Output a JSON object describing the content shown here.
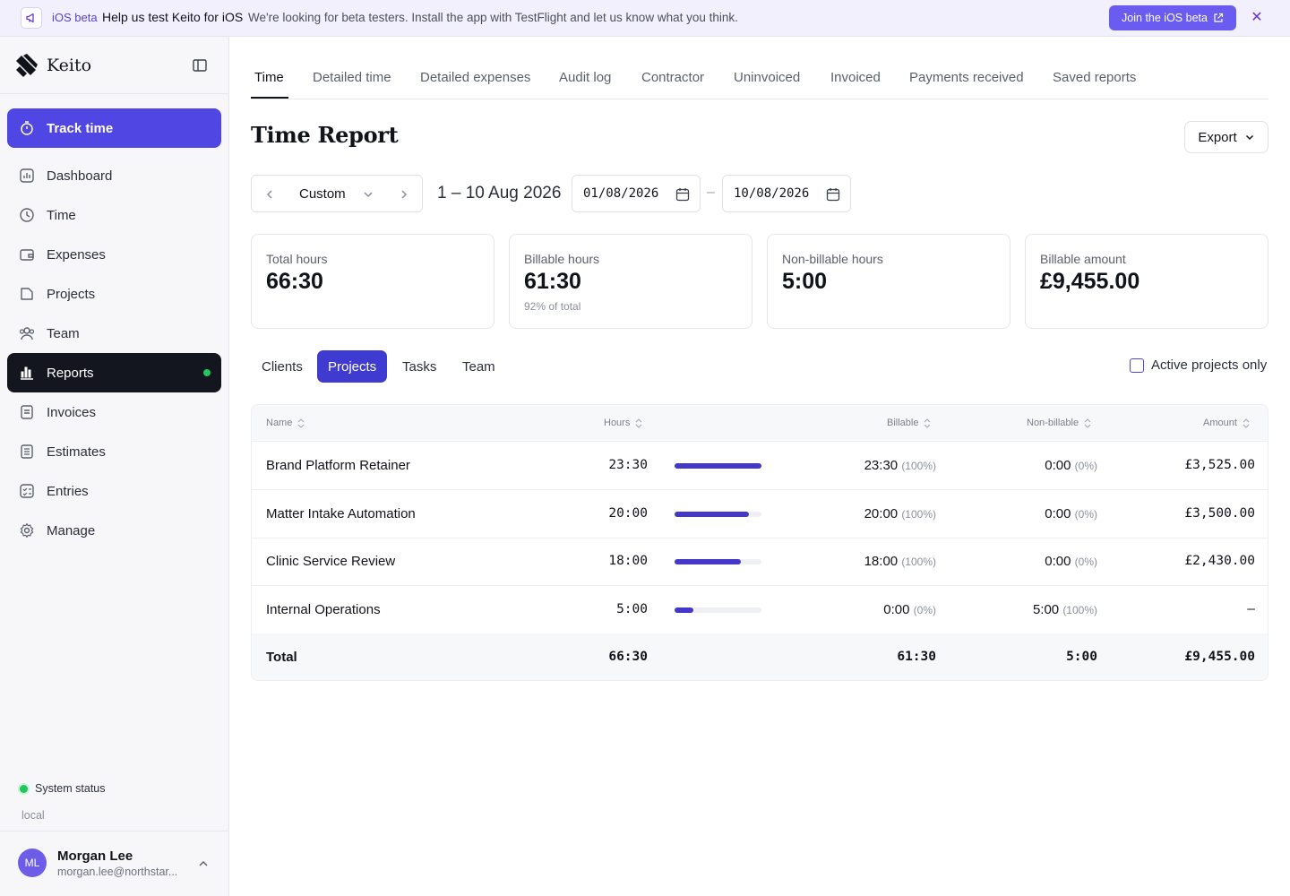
{
  "banner": {
    "tag": "iOS beta",
    "title": "Help us test Keito for iOS",
    "text": "We're looking for beta testers. Install the app with TestFlight and let us know what you think.",
    "button_label": "Join the iOS beta",
    "icon": "megaphone-icon",
    "accent": "#6a5cf0"
  },
  "sidebar": {
    "brand": "Keito",
    "track_label": "Track time",
    "items": [
      {
        "label": "Dashboard",
        "icon": "dashboard-icon"
      },
      {
        "label": "Time",
        "icon": "clock-icon"
      },
      {
        "label": "Expenses",
        "icon": "wallet-icon"
      },
      {
        "label": "Projects",
        "icon": "folder-icon"
      },
      {
        "label": "Team",
        "icon": "users-icon"
      },
      {
        "label": "Reports",
        "icon": "bar-chart-icon",
        "active": true
      },
      {
        "label": "Invoices",
        "icon": "invoice-icon"
      },
      {
        "label": "Estimates",
        "icon": "estimate-icon"
      },
      {
        "label": "Entries",
        "icon": "checklist-icon"
      },
      {
        "label": "Manage",
        "icon": "gear-icon"
      }
    ],
    "system_status": "System status",
    "environment": "local",
    "user": {
      "initials": "ML",
      "name": "Morgan Lee",
      "email": "morgan.lee@northstar..."
    }
  },
  "tabs": [
    "Time",
    "Detailed time",
    "Detailed expenses",
    "Audit log",
    "Contractor",
    "Uninvoiced",
    "Invoiced",
    "Payments received",
    "Saved reports"
  ],
  "page": {
    "title": "Time Report",
    "export_label": "Export",
    "range_mode": "Custom",
    "range_text": "1 – 10 Aug 2026",
    "date_from": "01/08/2026",
    "date_to": "10/08/2026",
    "date_separator": "–"
  },
  "stats": [
    {
      "label": "Total hours",
      "value": "66:30",
      "sub": ""
    },
    {
      "label": "Billable hours",
      "value": "61:30",
      "sub": "92% of total"
    },
    {
      "label": "Non-billable hours",
      "value": "5:00",
      "sub": ""
    },
    {
      "label": "Billable amount",
      "value": "£9,455.00",
      "sub": ""
    }
  ],
  "subtabs": [
    "Clients",
    "Projects",
    "Tasks",
    "Team"
  ],
  "active_only_label": "Active projects only",
  "table": {
    "headers": {
      "name": "Name",
      "hours": "Hours",
      "billable": "Billable",
      "non_billable": "Non-billable",
      "amount": "Amount"
    },
    "rows": [
      {
        "name": "Brand Platform Retainer",
        "hours": "23:30",
        "bar_fraction": 1.0,
        "billable": "23:30",
        "billable_pct": "(100%)",
        "non_billable": "0:00",
        "non_billable_pct": "(0%)",
        "amount": "£3,525.00"
      },
      {
        "name": "Matter Intake Automation",
        "hours": "20:00",
        "bar_fraction": 0.851,
        "billable": "20:00",
        "billable_pct": "(100%)",
        "non_billable": "0:00",
        "non_billable_pct": "(0%)",
        "amount": "£3,500.00"
      },
      {
        "name": "Clinic Service Review",
        "hours": "18:00",
        "bar_fraction": 0.766,
        "billable": "18:00",
        "billable_pct": "(100%)",
        "non_billable": "0:00",
        "non_billable_pct": "(0%)",
        "amount": "£2,430.00"
      },
      {
        "name": "Internal Operations",
        "hours": "5:00",
        "bar_fraction": 0.213,
        "billable": "0:00",
        "billable_pct": "(0%)",
        "non_billable": "5:00",
        "non_billable_pct": "(100%)",
        "amount": "–"
      }
    ],
    "total": {
      "label": "Total",
      "hours": "66:30",
      "billable": "61:30",
      "non_billable": "5:00",
      "amount": "£9,455.00"
    }
  }
}
